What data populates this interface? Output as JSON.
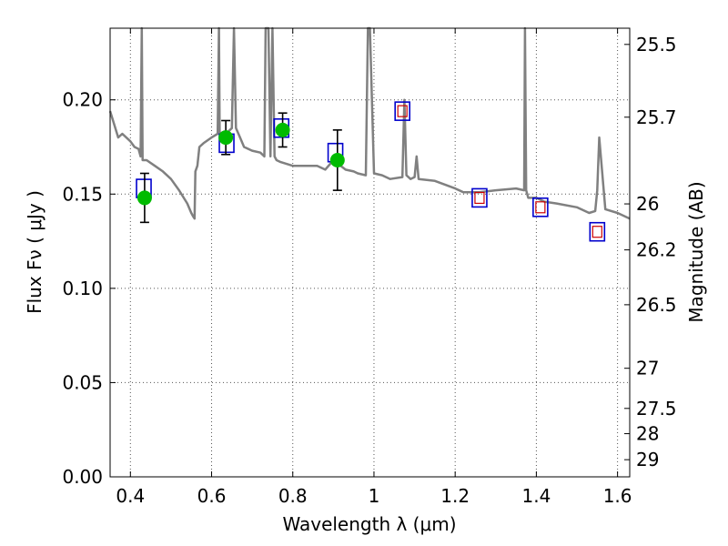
{
  "chart_data": {
    "type": "scatter",
    "title": "",
    "xlabel": "Wavelength  λ (μm)",
    "ylabel_left": "Flux  Fν  ( μJy )",
    "ylabel_right": "Magnitude (AB)",
    "xlim": [
      0.35,
      1.63
    ],
    "ylim": [
      0.0,
      0.238
    ],
    "grid": true,
    "x_ticks": [
      {
        "value": 0.4,
        "label": "0.4"
      },
      {
        "value": 0.6,
        "label": "0.6"
      },
      {
        "value": 0.8,
        "label": "0.8"
      },
      {
        "value": 1.0,
        "label": "1"
      },
      {
        "value": 1.2,
        "label": "1.2"
      },
      {
        "value": 1.4,
        "label": "1.4"
      },
      {
        "value": 1.6,
        "label": "1.6"
      }
    ],
    "y_ticks": [
      {
        "value": 0.0,
        "label": "0.00"
      },
      {
        "value": 0.05,
        "label": "0.05"
      },
      {
        "value": 0.1,
        "label": "0.10"
      },
      {
        "value": 0.15,
        "label": "0.15"
      },
      {
        "value": 0.2,
        "label": "0.20"
      }
    ],
    "right_ticks": [
      {
        "label": "25.5",
        "flux": 0.2294
      },
      {
        "label": "25.7",
        "flux": 0.1908
      },
      {
        "label": "26",
        "flux": 0.1448
      },
      {
        "label": "26.2",
        "flux": 0.1204
      },
      {
        "label": "26.5",
        "flux": 0.0913
      },
      {
        "label": "27",
        "flux": 0.0576
      },
      {
        "label": "27.5",
        "flux": 0.0363
      },
      {
        "label": "28",
        "flux": 0.0229
      },
      {
        "label": "29",
        "flux": 0.0091
      }
    ],
    "colors": {
      "model": "#808080",
      "observed": "#00bb00",
      "errorbar": "#000000",
      "model_box": "#0000cc",
      "upper_box": "#cc0000",
      "grid": "#555555"
    },
    "series": [
      {
        "kind": "model_spectrum",
        "x": [
          0.35,
          0.37,
          0.38,
          0.4,
          0.41,
          0.42,
          0.425,
          0.428,
          0.43,
          0.44,
          0.46,
          0.48,
          0.5,
          0.52,
          0.54,
          0.55,
          0.555,
          0.558,
          0.56,
          0.565,
          0.57,
          0.58,
          0.6,
          0.615,
          0.618,
          0.62,
          0.63,
          0.64,
          0.65,
          0.655,
          0.66,
          0.67,
          0.68,
          0.7,
          0.72,
          0.73,
          0.733,
          0.74,
          0.745,
          0.75,
          0.755,
          0.76,
          0.77,
          0.8,
          0.84,
          0.86,
          0.88,
          0.9,
          0.93,
          0.95,
          0.96,
          0.98,
          0.985,
          0.99,
          1.0,
          1.02,
          1.04,
          1.07,
          1.075,
          1.08,
          1.09,
          1.1,
          1.105,
          1.11,
          1.15,
          1.2,
          1.22,
          1.26,
          1.3,
          1.35,
          1.37,
          1.372,
          1.375,
          1.38,
          1.4,
          1.42,
          1.45,
          1.5,
          1.53,
          1.545,
          1.55,
          1.555,
          1.57,
          1.6,
          1.63
        ],
        "y": [
          0.194,
          0.18,
          0.182,
          0.178,
          0.175,
          0.174,
          0.17,
          0.238,
          0.168,
          0.168,
          0.165,
          0.162,
          0.158,
          0.152,
          0.145,
          0.14,
          0.138,
          0.137,
          0.162,
          0.165,
          0.175,
          0.177,
          0.18,
          0.182,
          0.238,
          0.182,
          0.183,
          0.183,
          0.185,
          0.238,
          0.185,
          0.18,
          0.175,
          0.173,
          0.172,
          0.17,
          0.238,
          0.238,
          0.17,
          0.238,
          0.17,
          0.168,
          0.167,
          0.165,
          0.165,
          0.165,
          0.163,
          0.168,
          0.163,
          0.162,
          0.161,
          0.16,
          0.238,
          0.238,
          0.161,
          0.16,
          0.158,
          0.159,
          0.2,
          0.16,
          0.158,
          0.159,
          0.17,
          0.158,
          0.157,
          0.153,
          0.151,
          0.151,
          0.152,
          0.153,
          0.152,
          0.238,
          0.152,
          0.148,
          0.148,
          0.146,
          0.145,
          0.143,
          0.14,
          0.141,
          0.152,
          0.18,
          0.142,
          0.14,
          0.137
        ]
      },
      {
        "kind": "observed_photometry",
        "points": [
          {
            "x": 0.435,
            "y": 0.148,
            "yerr": 0.013
          },
          {
            "x": 0.635,
            "y": 0.18,
            "yerr": 0.009
          },
          {
            "x": 0.775,
            "y": 0.184,
            "yerr": 0.009
          },
          {
            "x": 0.91,
            "y": 0.168,
            "yerr": 0.016
          }
        ]
      },
      {
        "kind": "model_photometry",
        "points": [
          {
            "x": 0.433,
            "y": 0.153
          },
          {
            "x": 0.637,
            "y": 0.177
          },
          {
            "x": 0.772,
            "y": 0.185
          },
          {
            "x": 0.905,
            "y": 0.172
          },
          {
            "x": 1.07,
            "y": 0.194
          },
          {
            "x": 1.26,
            "y": 0.148
          },
          {
            "x": 1.41,
            "y": 0.143
          },
          {
            "x": 1.55,
            "y": 0.13
          }
        ]
      },
      {
        "kind": "undetected_photometry",
        "points": [
          {
            "x": 1.07,
            "y": 0.194
          },
          {
            "x": 1.26,
            "y": 0.148
          },
          {
            "x": 1.41,
            "y": 0.143
          },
          {
            "x": 1.55,
            "y": 0.13
          }
        ]
      }
    ]
  }
}
